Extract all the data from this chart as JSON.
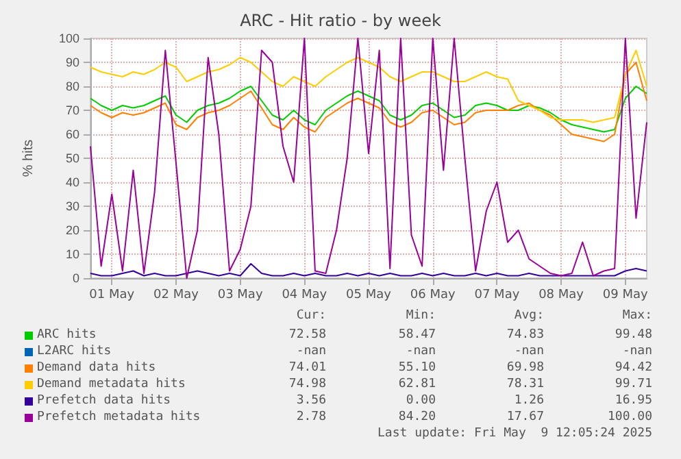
{
  "chart_data": {
    "type": "line",
    "title": "ARC - Hit ratio - by week",
    "ylabel": "% hits",
    "x": [
      "2025-04-30T16:00",
      "2025-04-30T20:00",
      "2025-05-01T00:00",
      "2025-05-01T04:00",
      "2025-05-01T08:00",
      "2025-05-01T12:00",
      "2025-05-01T16:00",
      "2025-05-01T20:00",
      "2025-05-02T00:00",
      "2025-05-02T04:00",
      "2025-05-02T08:00",
      "2025-05-02T12:00",
      "2025-05-02T16:00",
      "2025-05-02T20:00",
      "2025-05-03T00:00",
      "2025-05-03T04:00",
      "2025-05-03T08:00",
      "2025-05-03T12:00",
      "2025-05-03T16:00",
      "2025-05-03T20:00",
      "2025-05-04T00:00",
      "2025-05-04T04:00",
      "2025-05-04T08:00",
      "2025-05-04T12:00",
      "2025-05-04T16:00",
      "2025-05-04T20:00",
      "2025-05-05T00:00",
      "2025-05-05T04:00",
      "2025-05-05T08:00",
      "2025-05-05T12:00",
      "2025-05-05T16:00",
      "2025-05-05T20:00",
      "2025-05-06T00:00",
      "2025-05-06T04:00",
      "2025-05-06T08:00",
      "2025-05-06T12:00",
      "2025-05-06T16:00",
      "2025-05-06T20:00",
      "2025-05-07T00:00",
      "2025-05-07T04:00",
      "2025-05-07T08:00",
      "2025-05-07T12:00",
      "2025-05-07T16:00",
      "2025-05-07T20:00",
      "2025-05-08T00:00",
      "2025-05-08T04:00",
      "2025-05-08T08:00",
      "2025-05-08T12:00",
      "2025-05-08T16:00",
      "2025-05-08T20:00",
      "2025-05-09T00:00",
      "2025-05-09T04:00",
      "2025-05-09T08:00"
    ],
    "series": [
      {
        "name": "ARC hits",
        "color": "#00cc00",
        "values": [
          75,
          72,
          70,
          72,
          71,
          72,
          74,
          76,
          68,
          65,
          70,
          72,
          73,
          75,
          78,
          80,
          74,
          68,
          66,
          70,
          66,
          64,
          70,
          73,
          76,
          78,
          76,
          74,
          68,
          66,
          68,
          72,
          73,
          70,
          67,
          68,
          72,
          73,
          72,
          70,
          70,
          72,
          71,
          69,
          66,
          64,
          63,
          62,
          61,
          62,
          75,
          80,
          77
        ]
      },
      {
        "name": "L2ARC hits",
        "color": "#0066b3",
        "values": [
          null,
          null,
          null,
          null,
          null,
          null,
          null,
          null,
          null,
          null,
          null,
          null,
          null,
          null,
          null,
          null,
          null,
          null,
          null,
          null,
          null,
          null,
          null,
          null,
          null,
          null,
          null,
          null,
          null,
          null,
          null,
          null,
          null,
          null,
          null,
          null,
          null,
          null,
          null,
          null,
          null,
          null,
          null,
          null,
          null,
          null,
          null,
          null,
          null,
          null,
          null,
          null,
          null
        ]
      },
      {
        "name": "Demand data hits",
        "color": "#ff8000",
        "values": [
          72,
          69,
          67,
          69,
          68,
          69,
          71,
          73,
          64,
          62,
          67,
          69,
          70,
          72,
          75,
          78,
          71,
          64,
          62,
          67,
          63,
          61,
          67,
          70,
          73,
          75,
          73,
          71,
          65,
          63,
          65,
          69,
          70,
          67,
          64,
          65,
          69,
          70,
          70,
          70,
          72,
          73,
          70,
          68,
          64,
          60,
          59,
          58,
          57,
          60,
          85,
          90,
          74
        ]
      },
      {
        "name": "Demand metadata hits",
        "color": "#ffcc00",
        "values": [
          88,
          86,
          85,
          84,
          86,
          85,
          87,
          90,
          88,
          82,
          84,
          86,
          87,
          89,
          92,
          90,
          86,
          82,
          80,
          84,
          82,
          80,
          84,
          87,
          90,
          92,
          90,
          88,
          84,
          82,
          84,
          86,
          86,
          84,
          82,
          82,
          84,
          86,
          84,
          83,
          74,
          72,
          70,
          67,
          66,
          66,
          66,
          65,
          66,
          67,
          85,
          95,
          80
        ]
      },
      {
        "name": "Prefetch data hits",
        "color": "#330099",
        "values": [
          2,
          1,
          1,
          2,
          3,
          1,
          2,
          1,
          1,
          2,
          3,
          2,
          1,
          2,
          1,
          6,
          2,
          1,
          1,
          2,
          1,
          2,
          1,
          1,
          2,
          1,
          2,
          1,
          2,
          1,
          1,
          2,
          1,
          2,
          1,
          1,
          2,
          1,
          2,
          1,
          1,
          2,
          1,
          1,
          1,
          1,
          1,
          1,
          1,
          1,
          3,
          4,
          3
        ]
      },
      {
        "name": "Prefetch metadata hits",
        "color": "#990099",
        "values": [
          55,
          5,
          35,
          3,
          45,
          2,
          36,
          95,
          48,
          0,
          20,
          92,
          60,
          3,
          12,
          30,
          95,
          90,
          55,
          40,
          100,
          3,
          2,
          20,
          50,
          100,
          52,
          95,
          4,
          100,
          18,
          5,
          100,
          45,
          100,
          50,
          3,
          28,
          40,
          15,
          20,
          8,
          5,
          2,
          1,
          2,
          15,
          1,
          3,
          4,
          100,
          25,
          65
        ]
      }
    ],
    "xlim": [
      "2025-04-30T16:00",
      "2025-05-09T08:00"
    ],
    "xticks": [
      {
        "value": "2025-05-01",
        "label": "01 May"
      },
      {
        "value": "2025-05-02",
        "label": "02 May"
      },
      {
        "value": "2025-05-03",
        "label": "03 May"
      },
      {
        "value": "2025-05-04",
        "label": "04 May"
      },
      {
        "value": "2025-05-05",
        "label": "05 May"
      },
      {
        "value": "2025-05-06",
        "label": "06 May"
      },
      {
        "value": "2025-05-07",
        "label": "07 May"
      },
      {
        "value": "2025-05-08",
        "label": "08 May"
      },
      {
        "value": "2025-05-09",
        "label": "09 May"
      }
    ],
    "ylim": [
      0,
      100
    ],
    "yticks": [
      0,
      10,
      20,
      30,
      40,
      50,
      60,
      70,
      80,
      90,
      100
    ],
    "grid": true,
    "legend": "bottom",
    "annotations": [
      "Cur:",
      "Min:",
      "Avg:",
      "Max:",
      "72.58",
      "58.47",
      "74.83",
      "99.48",
      "-nan",
      "-nan",
      "-nan",
      "-nan",
      "74.01",
      "55.10",
      "69.98",
      "94.42",
      "74.98",
      "62.81",
      "78.31",
      "99.71",
      "3.56",
      "0.00",
      "1.26",
      "16.95",
      "2.78",
      "84.20",
      "17.67",
      "100.00",
      "Last update: Fri May  9 12:05:24 2025"
    ]
  }
}
